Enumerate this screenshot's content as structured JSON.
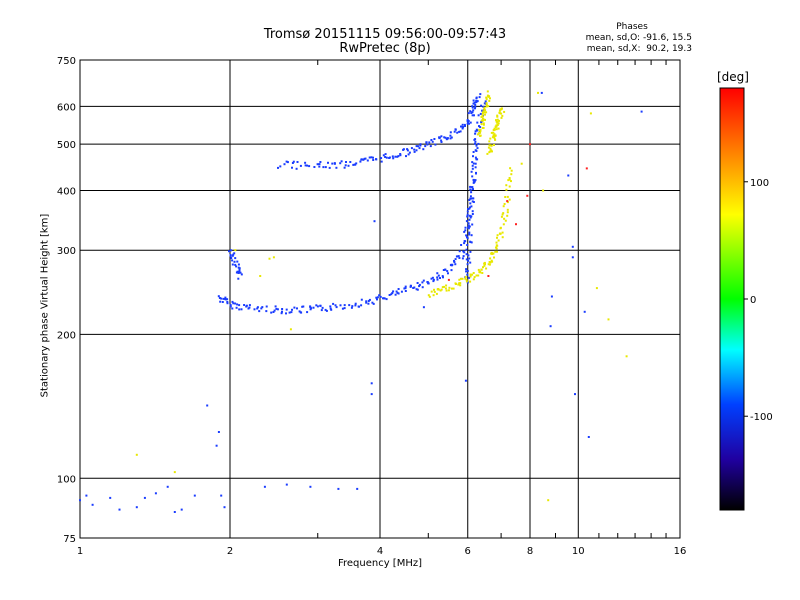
{
  "chart_data": {
    "type": "scatter",
    "title": "Tromsø 20151115 09:56:00-09:57:43",
    "subtitle": "RwPretec (8p)",
    "xlabel": "Frequency [MHz]",
    "ylabel": "Stationary phase Virtual Height [km]",
    "x_scale": "log",
    "y_scale": "log",
    "xlim": [
      1,
      16
    ],
    "ylim": [
      75,
      750
    ],
    "x_ticks": [
      1,
      2,
      4,
      6,
      8,
      10,
      16
    ],
    "y_ticks": [
      75,
      100,
      200,
      300,
      400,
      500,
      600,
      750
    ],
    "grid": true,
    "phase_stats": {
      "title": "Phases",
      "line1": "mean, sd,O: -91.6, 15.5",
      "line2": "mean, sd,X:  90.2, 19.3"
    },
    "colorbar": {
      "unit": "[deg]",
      "range": [
        -180,
        180
      ],
      "ticks": [
        100,
        0,
        -100
      ],
      "colormap": "rainbow"
    },
    "series": [
      {
        "mode": "O",
        "color": "#1a3cff",
        "curves": [
          {
            "f": [
              1.9,
              2.0,
              2.2,
              2.5,
              2.8,
              3.1,
              3.5,
              3.9,
              4.3,
              4.7,
              5.1,
              5.5,
              5.8,
              6.0,
              6.1
            ],
            "h": [
              240,
              232,
              228,
              226,
              226,
              228,
              232,
              237,
              245,
              253,
              262,
              275,
              295,
              340,
              420
            ]
          },
          {
            "f": [
              2.0,
              2.05,
              2.1
            ],
            "h": [
              300,
              280,
              265
            ]
          },
          {
            "f": [
              2.5,
              2.9,
              3.3,
              3.7,
              4.1,
              4.5,
              4.9,
              5.3,
              5.7,
              6.0,
              6.15,
              6.3
            ],
            "h": [
              455,
              453,
              455,
              462,
              472,
              484,
              498,
              515,
              535,
              560,
              600,
              640
            ]
          },
          {
            "f": [
              5.95,
              6.0,
              6.05,
              6.1,
              6.15,
              6.2,
              6.3,
              6.45
            ],
            "h": [
              260,
              300,
              350,
              400,
              450,
              500,
              560,
              620
            ]
          }
        ],
        "scatter": [
          [
            1.0,
            90
          ],
          [
            1.03,
            92
          ],
          [
            1.06,
            88
          ],
          [
            1.15,
            91
          ],
          [
            1.2,
            86
          ],
          [
            1.3,
            87
          ],
          [
            1.35,
            91
          ],
          [
            1.42,
            93
          ],
          [
            1.5,
            96
          ],
          [
            1.55,
            85
          ],
          [
            1.6,
            86
          ],
          [
            1.7,
            92
          ],
          [
            1.8,
            142
          ],
          [
            1.88,
            117
          ],
          [
            1.9,
            125
          ],
          [
            1.92,
            92
          ],
          [
            1.95,
            87
          ],
          [
            2.35,
            96
          ],
          [
            2.6,
            97
          ],
          [
            2.9,
            96
          ],
          [
            3.3,
            95
          ],
          [
            3.6,
            95
          ],
          [
            3.85,
            158
          ],
          [
            3.85,
            150
          ],
          [
            3.9,
            345
          ],
          [
            4.9,
            228
          ],
          [
            5.95,
            160
          ],
          [
            8.45,
            640
          ],
          [
            8.8,
            208
          ],
          [
            8.85,
            240
          ],
          [
            9.55,
            430
          ],
          [
            9.75,
            290
          ],
          [
            9.75,
            305
          ],
          [
            9.85,
            150
          ],
          [
            10.3,
            223
          ],
          [
            10.5,
            122
          ],
          [
            13.4,
            585
          ]
        ]
      },
      {
        "mode": "X",
        "color": "#e8e800",
        "curves": [
          {
            "f": [
              5.0,
              5.4,
              5.8,
              6.2,
              6.5,
              6.8,
              7.0,
              7.15,
              7.3
            ],
            "h": [
              243,
              250,
              258,
              268,
              280,
              300,
              330,
              380,
              450
            ]
          },
          {
            "f": [
              6.6,
              6.7,
              6.8,
              6.9,
              7.0
            ],
            "h": [
              480,
              510,
              540,
              570,
              600
            ]
          },
          {
            "f": [
              6.3,
              6.4,
              6.5,
              6.6
            ],
            "h": [
              520,
              560,
              600,
              640
            ]
          }
        ],
        "scatter": [
          [
            2.05,
            300
          ],
          [
            2.3,
            265
          ],
          [
            2.4,
            288
          ],
          [
            2.45,
            290
          ],
          [
            2.65,
            205
          ],
          [
            7.7,
            455
          ],
          [
            8.3,
            640
          ],
          [
            8.5,
            400
          ],
          [
            10.6,
            580
          ],
          [
            10.9,
            250
          ],
          [
            11.5,
            215
          ],
          [
            12.5,
            180
          ],
          [
            8.7,
            90
          ],
          [
            1.3,
            112
          ],
          [
            1.55,
            103
          ]
        ]
      },
      {
        "mode": "misc",
        "color": "#ff2020",
        "scatter": [
          [
            7.2,
            380
          ],
          [
            7.5,
            340
          ],
          [
            7.9,
            390
          ],
          [
            8.0,
            500
          ],
          [
            10.4,
            445
          ],
          [
            5.5,
            260
          ],
          [
            6.6,
            265
          ]
        ]
      }
    ]
  }
}
